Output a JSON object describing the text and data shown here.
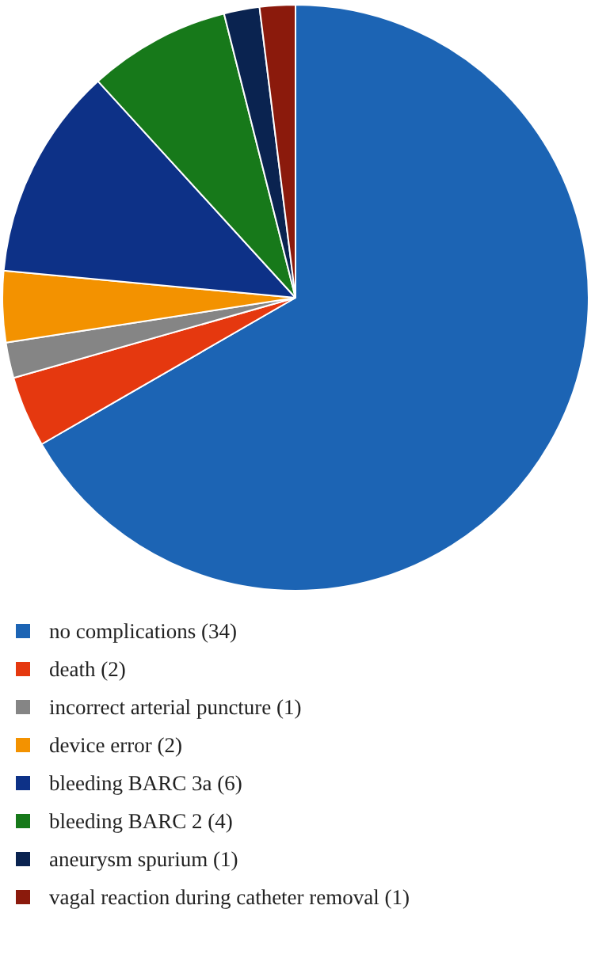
{
  "chart_data": {
    "type": "pie",
    "categories": [
      "no complications (34)",
      "death (2)",
      "incorrect arterial puncture (1)",
      "device error (2)",
      "bleeding BARC 3a (6)",
      "bleeding BARC 2 (4)",
      "aneurysm spurium (1)",
      "vagal reaction during catheter removal (1)"
    ],
    "values": [
      34,
      2,
      1,
      2,
      6,
      4,
      1,
      1
    ],
    "colors": [
      "#1c64b4",
      "#e5380f",
      "#858585",
      "#f39200",
      "#0d3187",
      "#17791a",
      "#0a2350",
      "#8b1a0c"
    ],
    "legend": "bottom"
  }
}
